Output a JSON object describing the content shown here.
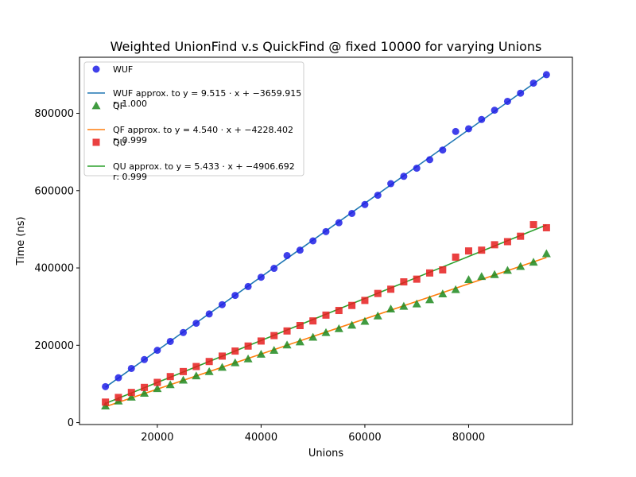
{
  "chart_data": {
    "type": "scatter",
    "title": "Weighted UnionFind v.s QuickFind @ fixed 10000 for varying Unions",
    "xlabel": "Unions",
    "ylabel": "Time (ns)",
    "xlim": [
      5000,
      100000
    ],
    "ylim": [
      -5000,
      945000
    ],
    "xticks": [
      20000,
      40000,
      60000,
      80000
    ],
    "xtick_labels": [
      "20000",
      "40000",
      "60000",
      "80000"
    ],
    "yticks": [
      0,
      200000,
      400000,
      600000,
      800000
    ],
    "ytick_labels": [
      "0",
      "200000",
      "400000",
      "600000",
      "800000"
    ],
    "grid": false,
    "legend_position": "top-left",
    "x": [
      10000,
      12500,
      15000,
      17500,
      20000,
      22500,
      25000,
      27500,
      30000,
      32500,
      35000,
      37500,
      40000,
      42500,
      45000,
      47500,
      50000,
      52500,
      55000,
      57500,
      60000,
      62500,
      65000,
      67500,
      70000,
      72500,
      75000,
      77500,
      80000,
      82500,
      85000,
      87500,
      90000,
      92500,
      95000
    ],
    "series": [
      {
        "name": "WUF",
        "marker": "circle",
        "color": "#1f1fe6",
        "values": [
          93000,
          116000,
          140000,
          163000,
          187000,
          210000,
          233000,
          257000,
          281000,
          305000,
          329000,
          352000,
          376000,
          399000,
          432000,
          446000,
          470000,
          494000,
          517000,
          541000,
          564000,
          588000,
          618000,
          637000,
          658000,
          680000,
          705000,
          753000,
          760000,
          784000,
          808000,
          831000,
          852000,
          878000,
          900000
        ]
      },
      {
        "name": "QF",
        "marker": "triangle",
        "color": "#1f8a1f",
        "values": [
          43000,
          56000,
          66000,
          76000,
          88000,
          98000,
          110000,
          121000,
          132000,
          143000,
          155000,
          165000,
          177000,
          187000,
          201000,
          209000,
          221000,
          233000,
          243000,
          252000,
          262000,
          276000,
          294000,
          301000,
          307000,
          318000,
          333000,
          344000,
          370000,
          378000,
          383000,
          394000,
          404000,
          415000,
          437000
        ]
      },
      {
        "name": "QU",
        "marker": "square",
        "color": "#e61f1f",
        "values": [
          53000,
          65000,
          78000,
          91000,
          104000,
          119000,
          132000,
          145000,
          158000,
          172000,
          185000,
          198000,
          211000,
          225000,
          237000,
          251000,
          263000,
          278000,
          290000,
          303000,
          316000,
          334000,
          345000,
          364000,
          371000,
          387000,
          395000,
          428000,
          444000,
          446000,
          460000,
          468000,
          482000,
          512000,
          504000
        ]
      }
    ],
    "fits": [
      {
        "name_prefix": "WUF approx. to ",
        "equation": "y = 9.515 · x + −3659.915",
        "r_label": "r: 1.000",
        "slope": 9.515,
        "intercept": -3659.915,
        "color": "#1f77b4"
      },
      {
        "name_prefix": "QF approx. to ",
        "equation": "y = 4.540 · x + −4228.402",
        "r_label": "r: 0.999",
        "slope": 4.54,
        "intercept": -4228.402,
        "color": "#ff7f0e"
      },
      {
        "name_prefix": "QU approx. to ",
        "equation": "y = 5.433 · x + −4906.692",
        "r_label": "r: 0.999",
        "slope": 5.433,
        "intercept": -4906.692,
        "color": "#2ca02c"
      }
    ],
    "legend_order": [
      "WUF",
      "fit:0",
      "QF",
      "fit:1",
      "QU",
      "fit:2"
    ]
  }
}
